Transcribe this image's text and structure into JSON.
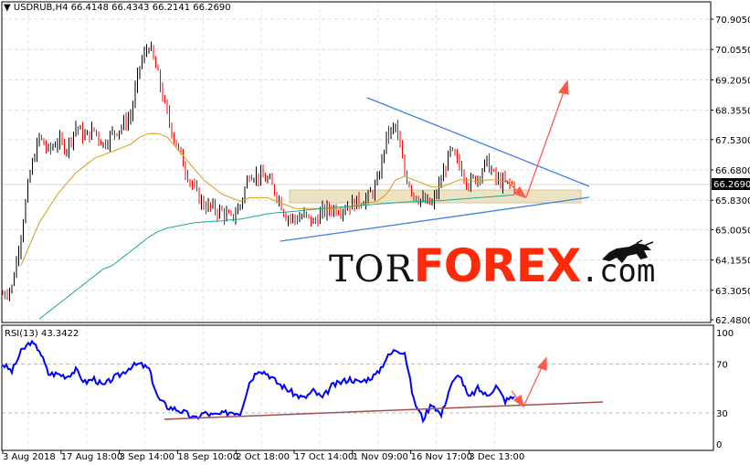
{
  "header": {
    "symbol": "USDRUB,H4",
    "ohlc": "66.4148 66.4343 66.2141 66.2690"
  },
  "rsi_panel": {
    "label": "RSI(13) 43.3422"
  },
  "logo": {
    "tor": "TOR",
    "forex": "FOREX",
    "com": ".com"
  },
  "colors": {
    "bull_candle": "#000000",
    "bear_candle": "#ff0000",
    "ma_fast": "#d4a017",
    "ma_slow": "#1aa7a0",
    "rsi": "#0000ff",
    "trendline": "#3d7fe6",
    "arrow": "#ff5a4a",
    "rsi_support": "#a05050",
    "zone": "#e8dcb0",
    "price_tag_bg": "#000000"
  },
  "chart_data": [
    {
      "type": "candlestick",
      "title": "USDRUB,H4",
      "price_axis_ticks": [
        "70.9050",
        "70.0550",
        "69.2050",
        "68.3550",
        "67.5300",
        "66.6800",
        "65.8300",
        "65.0050",
        "64.1550",
        "63.3050",
        "62.4800"
      ],
      "ylim": [
        62.48,
        70.905
      ],
      "current_price": "66.2690",
      "x_tick_labels": [
        "3 Aug 2018",
        "17 Aug 18:00",
        "3 Sep 14:00",
        "18 Sep 10:00",
        "2 Oct 18:00",
        "17 Oct 14:00",
        "1 Nov 09:00",
        "16 Nov 17:00",
        "3 Dec 13:00"
      ],
      "grid": true,
      "close_approx": [
        63.2,
        63.4,
        64.9,
        66.6,
        67.6,
        67.2,
        67.5,
        67.3,
        67.9,
        67.6,
        67.8,
        67.4,
        67.7,
        67.9,
        68.2,
        69.6,
        70.2,
        69.3,
        68.2,
        67.4,
        66.7,
        66.1,
        65.7,
        65.6,
        65.5,
        65.3,
        65.7,
        66.6,
        66.5,
        66.4,
        66.0,
        65.4,
        65.3,
        65.4,
        65.2,
        65.5,
        65.6,
        65.6,
        65.7,
        65.8,
        65.9,
        66.3,
        67.6,
        67.9,
        66.6,
        66.0,
        65.8,
        65.7,
        66.4,
        67.2,
        66.8,
        66.3,
        66.5,
        66.9,
        66.4,
        66.3,
        66.27
      ],
      "ma_fast_approx": [
        null,
        null,
        64.0,
        64.6,
        65.2,
        65.6,
        66.0,
        66.3,
        66.6,
        66.8,
        67.0,
        67.1,
        67.2,
        67.3,
        67.4,
        67.6,
        67.7,
        67.7,
        67.6,
        67.3,
        67.0,
        66.7,
        66.4,
        66.2,
        66.0,
        65.9,
        65.8,
        65.9,
        65.9,
        65.9,
        65.8,
        65.7,
        65.6,
        65.6,
        65.6,
        65.6,
        65.6,
        65.6,
        65.65,
        65.7,
        65.75,
        65.8,
        66.0,
        66.4,
        66.5,
        66.4,
        66.3,
        66.2,
        66.2,
        66.3,
        66.4,
        66.4,
        66.35,
        66.4,
        66.4,
        66.35,
        66.3
      ],
      "ma_slow_approx": [
        null,
        null,
        null,
        null,
        62.5,
        62.7,
        62.9,
        63.1,
        63.3,
        63.5,
        63.7,
        63.9,
        64.0,
        64.2,
        64.4,
        64.6,
        64.8,
        64.95,
        65.05,
        65.1,
        65.15,
        65.2,
        65.22,
        65.24,
        65.25,
        65.28,
        65.3,
        65.35,
        65.4,
        65.45,
        65.48,
        65.5,
        65.52,
        65.55,
        65.57,
        65.6,
        65.62,
        65.64,
        65.66,
        65.68,
        65.7,
        65.72,
        65.74,
        65.76,
        65.78,
        65.79,
        65.8,
        65.81,
        65.82,
        65.84,
        65.86,
        65.88,
        65.9,
        65.92,
        65.94,
        65.96,
        65.98
      ]
    },
    {
      "type": "line",
      "title": "RSI(13) 43.3422",
      "ylim": [
        0,
        100
      ],
      "y_tick_labels": [
        "100",
        "70",
        "30",
        "0"
      ],
      "levels": [
        70,
        30
      ],
      "values_approx": [
        70,
        64,
        80,
        88,
        82,
        62,
        62,
        60,
        65,
        55,
        58,
        52,
        58,
        62,
        68,
        70,
        66,
        42,
        35,
        33,
        30,
        25,
        30,
        28,
        29,
        31,
        30,
        55,
        66,
        62,
        55,
        50,
        45,
        42,
        48,
        42,
        52,
        55,
        58,
        55,
        58,
        62,
        75,
        82,
        80,
        40,
        25,
        38,
        28,
        52,
        62,
        42,
        50,
        44,
        52,
        40,
        43.3
      ]
    }
  ]
}
